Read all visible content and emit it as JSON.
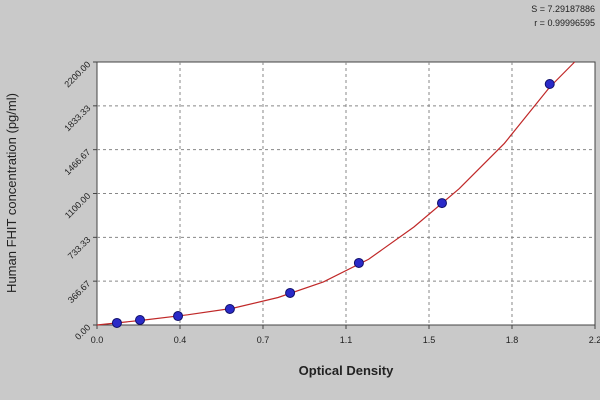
{
  "chart_data": {
    "type": "scatter",
    "x_label": "Optical Density",
    "y_label": "Human FHIT concentration (pg/ml)",
    "annotations": [
      "S = 7.29187886",
      "r = 0.99996595"
    ],
    "xlim": [
      0,
      2.2
    ],
    "ylim": [
      0,
      2200
    ],
    "xticks": [
      {
        "value": 0,
        "label": "0.0"
      },
      {
        "value": 0.3667,
        "label": "0.4"
      },
      {
        "value": 0.7333,
        "label": "0.7"
      },
      {
        "value": 1.1,
        "label": "1.1"
      },
      {
        "value": 1.4667,
        "label": "1.5"
      },
      {
        "value": 1.8333,
        "label": "1.8"
      },
      {
        "value": 2.2,
        "label": "2.2"
      }
    ],
    "yticks": [
      {
        "value": 0,
        "label": "0.00"
      },
      366.67,
      733.33,
      {
        "value": 1100,
        "label": "1100.00"
      },
      1466.67,
      1833.33,
      {
        "value": 2200,
        "label": "2200.00"
      }
    ],
    "grid": true,
    "series": [
      {
        "mode": "line",
        "color": "#c02828",
        "x": [
          0,
          0.2,
          0.4,
          0.6,
          0.8,
          1.0,
          1.2,
          1.4,
          1.6,
          1.8,
          2.0,
          2.11
        ],
        "values": [
          0,
          40,
          85,
          140,
          230,
          360,
          550,
          820,
          1140,
          1520,
          1990,
          2200
        ]
      },
      {
        "mode": "markers",
        "color": "#2a2ac8",
        "x": [
          0.088,
          0.19,
          0.358,
          0.587,
          0.853,
          1.157,
          1.524,
          2.0
        ],
        "values": [
          17,
          42,
          75,
          134,
          268,
          519,
          1020,
          2016
        ]
      }
    ]
  }
}
